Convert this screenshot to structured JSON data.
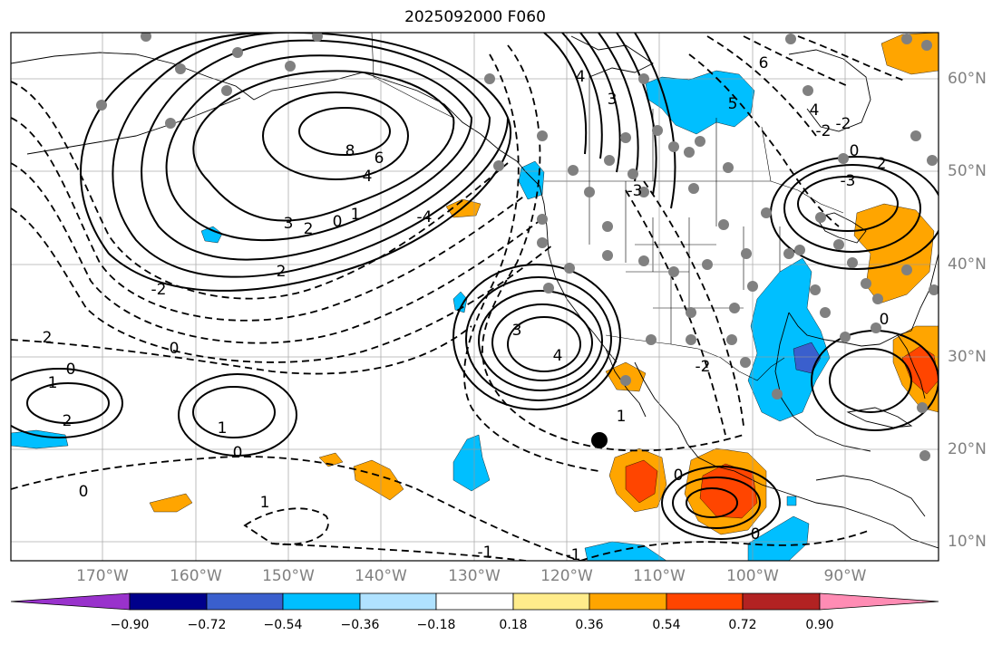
{
  "title": "2025092000 F060",
  "map": {
    "lat_labels": [
      "60°N",
      "50°N",
      "40°N",
      "30°N",
      "20°N",
      "10°N"
    ],
    "lon_labels": [
      "170°W",
      "160°W",
      "150°W",
      "140°W",
      "130°W",
      "120°W",
      "110°W",
      "100°W",
      "90°W"
    ],
    "contour_labels": [
      "8",
      "6",
      "4",
      "3",
      "2",
      "0",
      "1",
      "2",
      "0",
      "1",
      "2",
      "3",
      "4",
      "-4",
      "0",
      "0",
      "1",
      "2",
      "0",
      "1",
      "1",
      "-1",
      "-1",
      "-3",
      "-2",
      "0",
      "0",
      "3",
      "4",
      "5",
      "6",
      "4",
      "-2",
      "0",
      "-3",
      "2",
      "-2",
      "-2",
      "0"
    ]
  },
  "colorbar": {
    "labels": [
      "−0.90",
      "−0.72",
      "−0.54",
      "−0.36",
      "−0.18",
      "0.18",
      "0.36",
      "0.54",
      "0.72",
      "0.90"
    ],
    "colors": [
      "#9932cc",
      "#00008b",
      "#3a5fcd",
      "#00bfff",
      "#b0e2ff",
      "#ffffff",
      "#ffec8b",
      "#ffa500",
      "#ff4500",
      "#b22222",
      "#ff8cb4"
    ]
  },
  "chart_data": {
    "type": "map",
    "title": "2025092000 F060",
    "lon_range": [
      -180,
      -80
    ],
    "lat_range": [
      8,
      65
    ],
    "colorbar_ticks": [
      -0.9,
      -0.72,
      -0.54,
      -0.36,
      -0.18,
      0.18,
      0.36,
      0.54,
      0.72,
      0.9
    ]
  }
}
